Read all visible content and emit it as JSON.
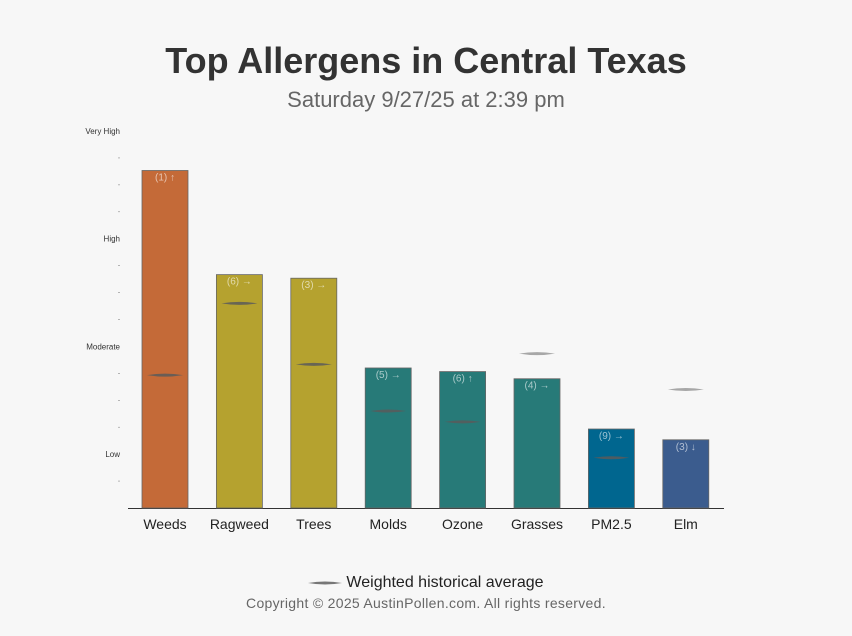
{
  "chart_data": {
    "type": "bar",
    "title": "Top Allergens in Central Texas",
    "subtitle": "Saturday 9/27/25 at 2:39 pm",
    "categories": [
      "Weeds",
      "Ragweed",
      "Trees",
      "Molds",
      "Ozone",
      "Grasses",
      "PM2.5",
      "Elm"
    ],
    "values": [
      9.4,
      6.5,
      6.4,
      3.9,
      3.8,
      3.6,
      2.2,
      1.9
    ],
    "historical_average": [
      3.7,
      5.7,
      4.0,
      2.7,
      2.4,
      4.3,
      1.4,
      3.3
    ],
    "bar_labels": [
      "(1) ↑",
      "(6) →",
      "(3) →",
      "(5) →",
      "(6) ↑",
      "(4) →",
      "(9) →",
      "(3) ↓"
    ],
    "bar_colors": [
      "#c46a38",
      "#b5a22f",
      "#b5a22f",
      "#277a78",
      "#277a78",
      "#277a78",
      "#00668f",
      "#3b5c8e"
    ],
    "y_levels": [
      {
        "label": "Low",
        "value": 1.5
      },
      {
        "label": "Moderate",
        "value": 4.5
      },
      {
        "label": "High",
        "value": 7.5
      },
      {
        "label": "Very High",
        "value": 10.5
      }
    ],
    "ylim": [
      0,
      10.5
    ],
    "legend": {
      "label": "Weighted historical average",
      "position": "bottom"
    },
    "copyright": "Copyright © 2025 AustinPollen.com.  All rights reserved."
  }
}
